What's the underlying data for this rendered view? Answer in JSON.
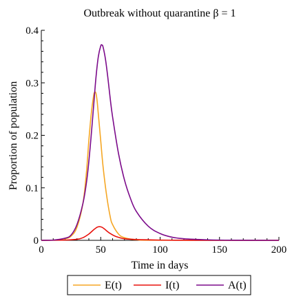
{
  "chart_data": {
    "type": "line",
    "title": "Outbreak without quarantine β = 1",
    "xlabel": "Time in days",
    "ylabel": "Proportion of population",
    "xlim": [
      0,
      200
    ],
    "ylim": [
      0,
      0.4
    ],
    "xticks": [
      0,
      50,
      100,
      150,
      200
    ],
    "yticks": [
      0,
      0.1,
      0.2,
      0.3,
      0.4
    ],
    "grid": false,
    "legend": "bottom",
    "series": [
      {
        "name": "E(t)",
        "color": "#f5a623",
        "x": [
          0,
          10,
          20,
          25,
          30,
          35,
          38,
          40,
          42,
          44,
          45,
          46,
          47,
          48,
          50,
          52,
          55,
          58,
          60,
          65,
          70,
          80,
          100,
          200
        ],
        "y": [
          0,
          0.0005,
          0.003,
          0.008,
          0.025,
          0.07,
          0.13,
          0.19,
          0.24,
          0.275,
          0.282,
          0.28,
          0.265,
          0.24,
          0.19,
          0.14,
          0.085,
          0.045,
          0.03,
          0.012,
          0.005,
          0.001,
          0.0002,
          0
        ]
      },
      {
        "name": "I(t)",
        "color": "#e8100b",
        "x": [
          0,
          20,
          30,
          35,
          40,
          44,
          47,
          49,
          51,
          53,
          55,
          58,
          62,
          66,
          70,
          80,
          100,
          120,
          150,
          200
        ],
        "y": [
          0,
          0.0005,
          0.002,
          0.005,
          0.012,
          0.02,
          0.025,
          0.026,
          0.025,
          0.022,
          0.018,
          0.013,
          0.008,
          0.005,
          0.003,
          0.0015,
          0.0005,
          0.0002,
          0,
          0
        ]
      },
      {
        "name": "A(t)",
        "color": "#7b0a8a",
        "x": [
          0,
          10,
          20,
          25,
          30,
          35,
          38,
          40,
          42,
          44,
          46,
          48,
          50,
          51,
          52,
          54,
          56,
          58,
          60,
          65,
          70,
          75,
          80,
          90,
          100,
          110,
          120,
          140,
          160,
          200
        ],
        "y": [
          0,
          0.0005,
          0.004,
          0.01,
          0.03,
          0.07,
          0.11,
          0.15,
          0.2,
          0.255,
          0.31,
          0.35,
          0.37,
          0.372,
          0.368,
          0.345,
          0.31,
          0.27,
          0.235,
          0.165,
          0.115,
          0.08,
          0.055,
          0.027,
          0.013,
          0.006,
          0.003,
          0.001,
          0.0002,
          0
        ]
      }
    ]
  }
}
